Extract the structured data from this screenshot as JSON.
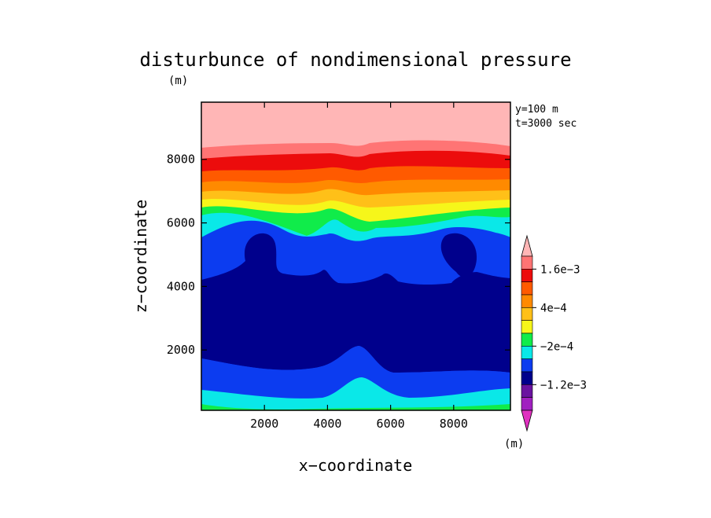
{
  "chart_data": {
    "type": "heatmap",
    "title": "disturbunce of nondimensional pressure",
    "ylabel_unit": "(m)",
    "xlabel": "x−coordinate",
    "ylabel": "z−coordinate",
    "xlabel_unit": "(m)",
    "annotations": [
      "y=100  m",
      "t=3000 sec"
    ],
    "xlim": [
      0,
      9800
    ],
    "ylim": [
      100,
      9800
    ],
    "xticks": [
      2000,
      4000,
      6000,
      8000
    ],
    "xtick_labels": [
      "2000",
      "4000",
      "6000",
      "8000"
    ],
    "yticks": [
      2000,
      4000,
      6000,
      8000
    ],
    "ytick_labels": [
      "2000",
      "4000",
      "6000",
      "8000"
    ],
    "colorbar": {
      "levels": [
        "-2e-3",
        "-1.6e-3",
        "-1.2e-3",
        "-8e-4",
        "-4e-4",
        "-2e-4",
        "0",
        "2e-4",
        "4e-4",
        "8e-4",
        "1.2e-3",
        "1.6e-3",
        "2e-3"
      ],
      "colors": [
        "#e030c0",
        "#a020c0",
        "#6a12a0",
        "#00008c",
        "#0c3cf0",
        "#0ae8e8",
        "#10ec4a",
        "#f6f61a",
        "#ffc018",
        "#ff8a00",
        "#ff5a00",
        "#ec0c0c",
        "#ff7474",
        "#ffb6b6"
      ],
      "labels": [
        {
          "level": "1.6e-3",
          "text": "1.6e−3"
        },
        {
          "level": "4e-4",
          "text": "4e−4"
        },
        {
          "level": "-2e-4",
          "text": "−2e−4"
        },
        {
          "level": "-1.2e-3",
          "text": "−1.2e−3"
        }
      ]
    },
    "layers": [
      {
        "color": "#00008c",
        "label": "< -8e-4"
      },
      {
        "color": "#0c3cf0",
        "label": "-8e-4 to -4e-4"
      },
      {
        "color": "#0ae8e8",
        "label": "-4e-4 to -2e-4"
      },
      {
        "color": "#10ec4a",
        "label": "-2e-4 to 0"
      },
      {
        "color": "#f6f61a",
        "label": "0 to 2e-4"
      },
      {
        "color": "#ffc018",
        "label": "2e-4 to 4e-4"
      },
      {
        "color": "#ff8a00",
        "label": "4e-4 to 8e-4"
      },
      {
        "color": "#ff5a00",
        "label": "8e-4 to 1.2e-3"
      },
      {
        "color": "#ec0c0c",
        "label": "1.2e-3 to 1.6e-3"
      },
      {
        "color": "#ff7474",
        "label": "1.6e-3 to 2e-3"
      },
      {
        "color": "#ffb6b6",
        "label": "> 2e-3"
      }
    ]
  }
}
